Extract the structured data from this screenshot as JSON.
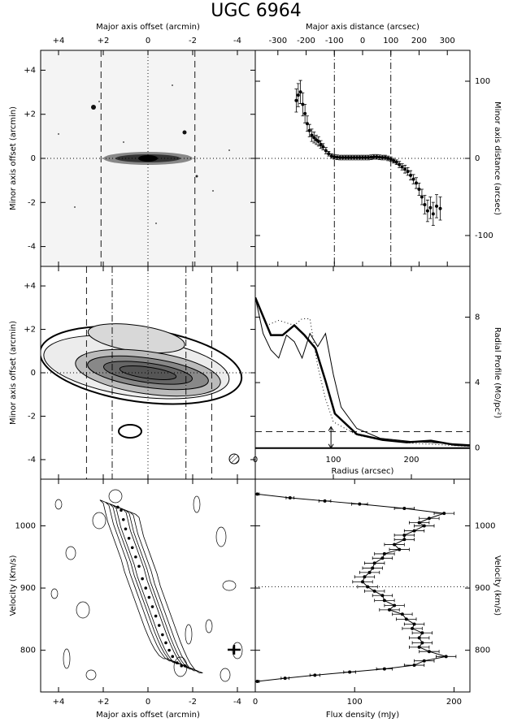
{
  "title": "UGC 6964",
  "chart_data": [
    {
      "type": "image",
      "x_label": "Major axis offset (arcmin)",
      "y_label": "Minor axis offset (arcmin)",
      "xlim": [
        4.8,
        -4.8
      ],
      "ylim": [
        -4.9,
        4.9
      ],
      "xticks": [
        {
          "value": 4,
          "label": "+4"
        },
        {
          "value": 2,
          "label": "+2"
        },
        0,
        -2,
        -4
      ],
      "yticks": [
        {
          "value": 4,
          "label": "+4"
        },
        {
          "value": 2,
          "label": "+2"
        },
        0,
        -2,
        -4
      ],
      "ref_lines": [
        {
          "axis": "x",
          "value": 2.1,
          "style": "dashed"
        },
        {
          "axis": "x",
          "value": -2.1,
          "style": "dashed"
        },
        {
          "axis": "x",
          "value": 0,
          "style": "dotted"
        },
        {
          "axis": "y",
          "value": 0,
          "style": "dotted"
        }
      ]
    },
    {
      "type": "scatter",
      "x_label": "Major axis distance (arcsec)",
      "y_label": "Minor axis distance (arcsec)",
      "xlim": [
        -380,
        380
      ],
      "ylim": [
        -140,
        140
      ],
      "xticks": [
        -300,
        -200,
        -100,
        0,
        100,
        200,
        300
      ],
      "yticks": [
        -100,
        0,
        100
      ],
      "connect": false,
      "color": "#000000",
      "x": [
        -235,
        -228,
        -220,
        -212,
        -204,
        -196,
        -188,
        -180,
        -172,
        -164,
        -156,
        -148,
        -140,
        -130,
        -120,
        -110,
        -100,
        -90,
        -80,
        -70,
        -60,
        -50,
        -40,
        -30,
        -20,
        -10,
        0,
        10,
        20,
        30,
        40,
        50,
        60,
        70,
        80,
        90,
        100,
        110,
        120,
        130,
        140,
        150,
        160,
        170,
        180,
        190,
        200,
        210,
        220,
        230,
        240,
        250,
        262,
        275
      ],
      "y": [
        75,
        82,
        86,
        70,
        58,
        45,
        36,
        30,
        27,
        24,
        22,
        18,
        15,
        10,
        6,
        3,
        2,
        1.5,
        1,
        1,
        1,
        1,
        1,
        1,
        1,
        1,
        1,
        1,
        1,
        1.5,
        2,
        2,
        1.5,
        1,
        1,
        0,
        -1,
        -3,
        -5,
        -8,
        -11,
        -14,
        -17,
        -22,
        -27,
        -32,
        -40,
        -50,
        -60,
        -68,
        -64,
        -72,
        -62,
        -65
      ],
      "yerr": [
        15,
        15,
        15,
        15,
        12,
        10,
        8,
        8,
        7,
        6,
        6,
        5,
        4,
        4,
        3,
        3,
        3,
        3,
        3,
        3,
        3,
        3,
        3,
        3,
        3,
        3,
        3,
        3,
        3,
        3,
        3,
        3,
        3,
        3,
        3,
        3,
        3,
        3,
        3,
        4,
        4,
        5,
        5,
        6,
        6,
        7,
        8,
        10,
        12,
        14,
        14,
        15,
        15,
        15
      ],
      "ref_lines": [
        {
          "axis": "x",
          "value": -100,
          "style": "dashdot"
        },
        {
          "axis": "x",
          "value": 100,
          "style": "dashdot"
        },
        {
          "axis": "y",
          "value": 0,
          "style": "dotted"
        }
      ]
    },
    {
      "type": "contour",
      "y_label": "Minor axis offset (arcmin)",
      "xlim": [
        4.8,
        -4.8
      ],
      "ylim": [
        -4.9,
        4.9
      ],
      "xticks": [
        4,
        2,
        0,
        -2,
        -4
      ],
      "yticks": [
        {
          "value": 4,
          "label": "+4"
        },
        {
          "value": 2,
          "label": "+2"
        },
        0,
        -2,
        -4
      ],
      "ref_lines": [
        {
          "axis": "x",
          "value": 2.75,
          "style": "dashed"
        },
        {
          "axis": "x",
          "value": 1.6,
          "style": "dashdot"
        },
        {
          "axis": "x",
          "value": -1.7,
          "style": "dashdot"
        },
        {
          "axis": "x",
          "value": -2.85,
          "style": "dashed"
        },
        {
          "axis": "x",
          "value": 0,
          "style": "dotted"
        },
        {
          "axis": "y",
          "value": 0,
          "style": "dotted"
        }
      ]
    },
    {
      "type": "line",
      "x_label": "Radius (arcsec)",
      "y_label": "Radial Profile (M⊙/pc²)",
      "xlim": [
        0,
        275
      ],
      "ylim": [
        -1.9,
        11.1
      ],
      "xticks": [
        0,
        100,
        200
      ],
      "yticks": [
        0,
        4,
        8
      ],
      "series": [
        {
          "color": "#000000",
          "width": 2.5,
          "style": "solid",
          "x": [
            0,
            20,
            35,
            50,
            63,
            77,
            90,
            102,
            130,
            163,
            194,
            225,
            255,
            275
          ],
          "values": [
            9.2,
            6.9,
            6.9,
            7.5,
            6.9,
            6.1,
            4.1,
            2.1,
            0.85,
            0.5,
            0.35,
            0.45,
            0.2,
            0.15
          ]
        },
        {
          "color": "#000000",
          "width": 1,
          "style": "solid",
          "x": [
            0,
            10,
            20,
            30,
            40,
            50,
            60,
            70,
            80,
            90,
            100,
            110,
            130,
            160,
            200,
            240,
            275
          ],
          "values": [
            9.2,
            7.0,
            6.0,
            5.5,
            6.9,
            6.5,
            5.5,
            7.0,
            6.2,
            7.0,
            4.5,
            2.5,
            1.2,
            0.6,
            0.4,
            0.3,
            0.2
          ]
        },
        {
          "color": "#000000",
          "width": 1,
          "style": "dotted",
          "x": [
            0,
            15,
            30,
            50,
            60,
            70,
            80,
            90,
            100,
            130,
            160,
            200,
            275
          ],
          "values": [
            9.2,
            7.5,
            7.8,
            7.5,
            7.9,
            7.9,
            5.0,
            3.0,
            1.6,
            0.8,
            0.5,
            0.3,
            0.1
          ]
        }
      ],
      "ref_lines": [
        {
          "axis": "y",
          "value": 1.0,
          "style": "dashed"
        },
        {
          "axis": "y",
          "value": 0,
          "style": "solid"
        }
      ],
      "arrow": {
        "x": 97,
        "y0": 0,
        "y1": 1.3
      }
    },
    {
      "type": "contour",
      "x_label": "Major axis offset (arcmin)",
      "y_label": "Velocity (Km/s)",
      "xlim": [
        4.8,
        -4.8
      ],
      "ylim": [
        733,
        1075
      ],
      "xticks": [
        {
          "value": 4,
          "label": "+4"
        },
        {
          "value": 2,
          "label": "+2"
        },
        0,
        -2,
        -4
      ],
      "yticks": [
        800,
        900,
        1000
      ],
      "ridge": {
        "x": [
          1.35,
          1.2,
          1.1,
          1.0,
          0.85,
          0.7,
          0.55,
          0.4,
          0.25,
          0.1,
          -0.05,
          -0.2,
          -0.35,
          -0.5,
          -0.65,
          -0.8,
          -0.95,
          -1.1,
          -1.3,
          -1.5,
          -1.65
        ],
        "y": [
          1030,
          1025,
          1010,
          995,
          980,
          965,
          950,
          935,
          915,
          900,
          885,
          870,
          855,
          840,
          825,
          812,
          800,
          790,
          780,
          775,
          775
        ]
      }
    },
    {
      "type": "scatter",
      "x_label": "Flux density (mJy)",
      "y_label": "Velocity (km/s)",
      "xlim": [
        0,
        216
      ],
      "ylim": [
        733,
        1075
      ],
      "xticks": [
        0,
        100,
        200
      ],
      "yticks": [
        800,
        900,
        1000
      ],
      "connect": true,
      "color": "#000000",
      "x": [
        2,
        35,
        70,
        105,
        150,
        190,
        175,
        165,
        170,
        160,
        150,
        150,
        140,
        145,
        130,
        128,
        120,
        118,
        115,
        110,
        108,
        113,
        120,
        128,
        130,
        140,
        135,
        148,
        152,
        160,
        158,
        168,
        165,
        168,
        165,
        175,
        192,
        170,
        160,
        130,
        95,
        60,
        30,
        2
      ],
      "y": [
        1051,
        1045,
        1040,
        1035,
        1028,
        1020,
        1012,
        1005,
        1000,
        992,
        985,
        978,
        970,
        962,
        955,
        948,
        940,
        932,
        925,
        918,
        910,
        902,
        895,
        888,
        880,
        872,
        865,
        858,
        850,
        842,
        835,
        828,
        820,
        812,
        805,
        798,
        790,
        783,
        776,
        770,
        765,
        760,
        755,
        750
      ],
      "xerr": [
        2,
        4,
        6,
        8,
        10,
        10,
        10,
        10,
        10,
        10,
        10,
        10,
        10,
        10,
        10,
        10,
        10,
        10,
        10,
        10,
        10,
        10,
        10,
        10,
        10,
        10,
        10,
        10,
        10,
        10,
        10,
        10,
        10,
        10,
        10,
        10,
        10,
        10,
        10,
        8,
        6,
        5,
        4,
        2
      ],
      "ref_lines": [
        {
          "axis": "y",
          "value": 902,
          "style": "dotted"
        }
      ]
    }
  ]
}
